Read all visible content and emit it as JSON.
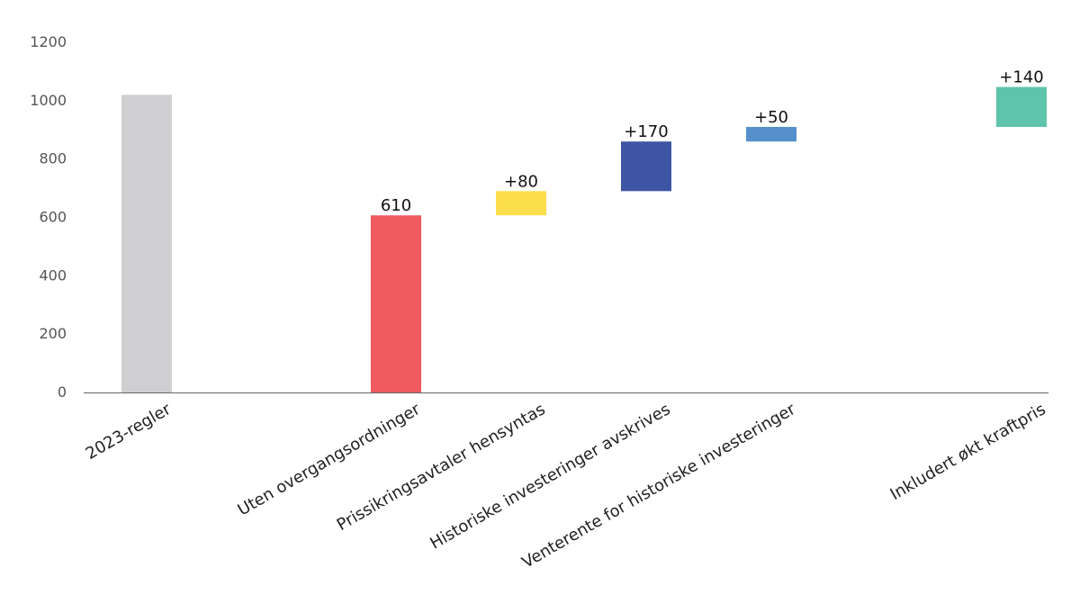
{
  "chart_data": {
    "type": "bar",
    "subtype": "waterfall",
    "title": "",
    "xlabel": "",
    "ylabel": "",
    "ylim": [
      0,
      1200
    ],
    "yticks": [
      0,
      200,
      400,
      600,
      800,
      1000,
      1200
    ],
    "grid": false,
    "legend": "none",
    "categories": [
      "2023-regler",
      "Uten overgangsordninger",
      "Prissikringsavtaler hensyntas",
      "Historiske investeringer avskrives",
      "Venterente for historiske investeringer",
      "Inkludert økt kraftpris"
    ],
    "bars": [
      {
        "category": "2023-regler",
        "start": 0,
        "end": 1020,
        "label": "",
        "color": "#cfcfd1"
      },
      {
        "category": "Uten overgangsordninger",
        "start": 0,
        "end": 607,
        "label": "610",
        "color": "#ef5b61"
      },
      {
        "category": "Prissikringsavtaler hensyntas",
        "start": 607,
        "end": 690,
        "label": "+80",
        "color": "#fcde4b"
      },
      {
        "category": "Historiske investeringer avskrives",
        "start": 690,
        "end": 860,
        "label": "+170",
        "color": "#3e55a3"
      },
      {
        "category": "Venterente for historiske investeringer",
        "start": 860,
        "end": 910,
        "label": "+50",
        "color": "#5590cd"
      },
      {
        "category": "Inkludert økt kraftpris",
        "start": 910,
        "end": 1047,
        "label": "+140",
        "color": "#5ec4ac"
      }
    ]
  }
}
